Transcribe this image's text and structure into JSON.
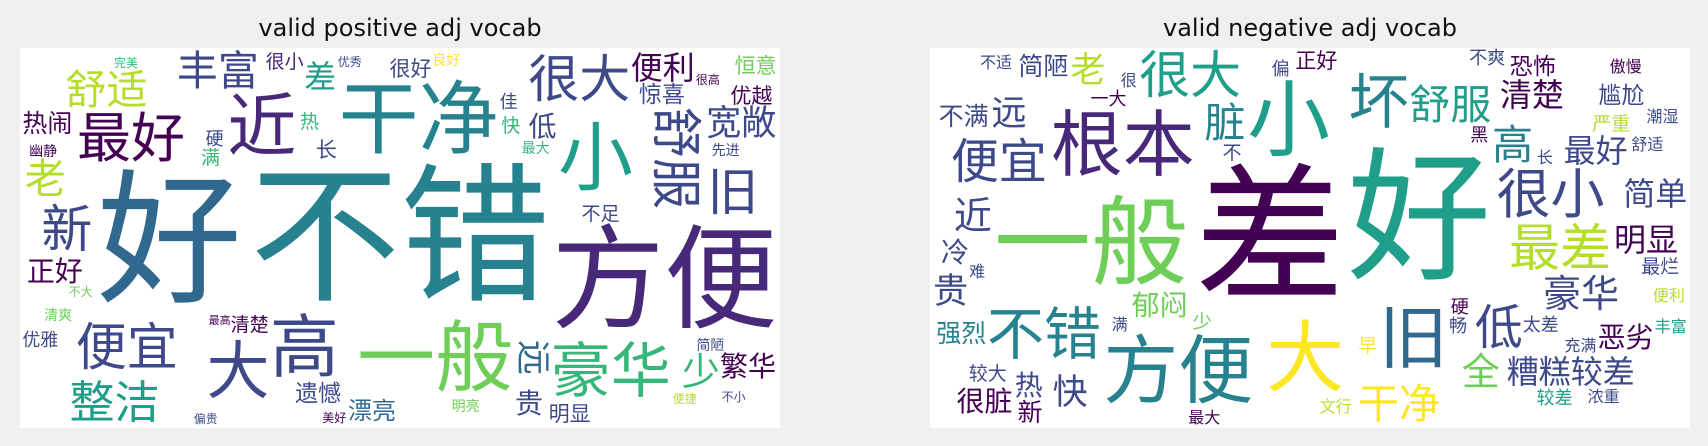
{
  "palette": {
    "background": "#f0f0f0",
    "cloud_background": "#ffffff",
    "viridis": [
      "#440154",
      "#482878",
      "#3e4989",
      "#31688e",
      "#26828e",
      "#1f9e89",
      "#35b779",
      "#6ece58",
      "#b5de2b",
      "#fde725"
    ]
  },
  "chart_data": [
    {
      "type": "wordcloud",
      "title": "valid positive adj vocab",
      "words": [
        {
          "text": "不错",
          "weight": 100,
          "color": "#26828e",
          "vertical": false
        },
        {
          "text": "好",
          "weight": 96,
          "color": "#31688e",
          "vertical": false
        },
        {
          "text": "方便",
          "weight": 72,
          "color": "#482878",
          "vertical": false
        },
        {
          "text": "干净",
          "weight": 48,
          "color": "#26828e",
          "vertical": false
        },
        {
          "text": "一般",
          "weight": 46,
          "color": "#6ece58",
          "vertical": false
        },
        {
          "text": "小",
          "weight": 44,
          "color": "#1f9e89",
          "vertical": false
        },
        {
          "text": "高",
          "weight": 40,
          "color": "#3e4989",
          "vertical": false
        },
        {
          "text": "近",
          "weight": 40,
          "color": "#482878",
          "vertical": false
        },
        {
          "text": "豪华",
          "weight": 34,
          "color": "#35b779",
          "vertical": false
        },
        {
          "text": "大",
          "weight": 36,
          "color": "#3e4989",
          "vertical": false
        },
        {
          "text": "最好",
          "weight": 30,
          "color": "#440154",
          "vertical": false
        },
        {
          "text": "很大",
          "weight": 28,
          "color": "#3e4989",
          "vertical": false
        },
        {
          "text": "舒服",
          "weight": 28,
          "color": "#3e4989",
          "vertical": true
        },
        {
          "text": "便宜",
          "weight": 28,
          "color": "#3e4989",
          "vertical": false
        },
        {
          "text": "新",
          "weight": 28,
          "color": "#3e4989",
          "vertical": false
        },
        {
          "text": "整洁",
          "weight": 24,
          "color": "#1f9e89",
          "vertical": false
        },
        {
          "text": "丰富",
          "weight": 22,
          "color": "#3e4989",
          "vertical": false
        },
        {
          "text": "舒适",
          "weight": 22,
          "color": "#b5de2b",
          "vertical": false
        },
        {
          "text": "旧",
          "weight": 28,
          "color": "#3e4989",
          "vertical": false
        },
        {
          "text": "老",
          "weight": 22,
          "color": "#b5de2b",
          "vertical": false
        },
        {
          "text": "少",
          "weight": 20,
          "color": "#35b779",
          "vertical": false
        },
        {
          "text": "宽敞",
          "weight": 18,
          "color": "#3e4989",
          "vertical": false
        },
        {
          "text": "便利",
          "weight": 16,
          "color": "#440154",
          "vertical": false
        },
        {
          "text": "漂亮",
          "weight": 16,
          "color": "#31688e",
          "vertical": false
        },
        {
          "text": "正好",
          "weight": 14,
          "color": "#440154",
          "vertical": false
        },
        {
          "text": "繁华",
          "weight": 14,
          "color": "#440154",
          "vertical": false
        },
        {
          "text": "远",
          "weight": 18,
          "color": "#31688e",
          "vertical": true
        },
        {
          "text": "差",
          "weight": 16,
          "color": "#1f9e89",
          "vertical": false
        },
        {
          "text": "热闹",
          "weight": 12,
          "color": "#440154",
          "vertical": false
        },
        {
          "text": "不足",
          "weight": 12,
          "color": "#3e4989",
          "vertical": false
        },
        {
          "text": "遗憾",
          "weight": 11,
          "color": "#3e4989",
          "vertical": false
        },
        {
          "text": "惊喜",
          "weight": 11,
          "color": "#3e4989",
          "vertical": false
        },
        {
          "text": "很好",
          "weight": 10,
          "color": "#3e4989",
          "vertical": false
        },
        {
          "text": "明显",
          "weight": 10,
          "color": "#3e4989",
          "vertical": false
        },
        {
          "text": "清楚",
          "weight": 9,
          "color": "#440154",
          "vertical": false
        },
        {
          "text": "低",
          "weight": 14,
          "color": "#3e4989",
          "vertical": false
        },
        {
          "text": "贵",
          "weight": 14,
          "color": "#3e4989",
          "vertical": false
        },
        {
          "text": "优越",
          "weight": 10,
          "color": "#440154",
          "vertical": false
        },
        {
          "text": "很小",
          "weight": 9,
          "color": "#482878",
          "vertical": false
        },
        {
          "text": "长",
          "weight": 10,
          "color": "#3e4989",
          "vertical": false
        },
        {
          "text": "最大",
          "weight": 9,
          "color": "#35b779",
          "vertical": false
        },
        {
          "text": "热",
          "weight": 9,
          "color": "#35b779",
          "vertical": false
        },
        {
          "text": "快",
          "weight": 9,
          "color": "#35b779",
          "vertical": false
        },
        {
          "text": "满",
          "weight": 9,
          "color": "#35b779",
          "vertical": false
        },
        {
          "text": "恒意",
          "weight": 10,
          "color": "#6ece58",
          "vertical": false
        },
        {
          "text": "明亮",
          "weight": 9,
          "color": "#6ece58",
          "vertical": false
        },
        {
          "text": "优雅",
          "weight": 8,
          "color": "#3e4989",
          "vertical": false
        },
        {
          "text": "硬",
          "weight": 8,
          "color": "#3e4989",
          "vertical": false
        },
        {
          "text": "良好",
          "weight": 8,
          "color": "#fde725",
          "vertical": false
        },
        {
          "text": "先进",
          "weight": 8,
          "color": "#3e4989",
          "vertical": false
        },
        {
          "text": "佳",
          "weight": 8,
          "color": "#3e4989",
          "vertical": false
        },
        {
          "text": "简陋",
          "weight": 8,
          "color": "#3e4989",
          "vertical": false
        },
        {
          "text": "清爽",
          "weight": 8,
          "color": "#6ece58",
          "vertical": false
        },
        {
          "text": "幽静",
          "weight": 8,
          "color": "#440154",
          "vertical": false
        },
        {
          "text": "最高",
          "weight": 8,
          "color": "#440154",
          "vertical": false
        },
        {
          "text": "优秀",
          "weight": 7,
          "color": "#3e4989",
          "vertical": false
        },
        {
          "text": "美好",
          "weight": 7,
          "color": "#440154",
          "vertical": false
        },
        {
          "text": "不大",
          "weight": 7,
          "color": "#6ece58",
          "vertical": false
        },
        {
          "text": "偏贵",
          "weight": 7,
          "color": "#3e4989",
          "vertical": false
        },
        {
          "text": "便捷",
          "weight": 7,
          "color": "#b5de2b",
          "vertical": false
        },
        {
          "text": "完美",
          "weight": 7,
          "color": "#35b779",
          "vertical": false
        },
        {
          "text": "很高",
          "weight": 7,
          "color": "#440154",
          "vertical": false
        },
        {
          "text": "不小",
          "weight": 7,
          "color": "#3e4989",
          "vertical": false
        }
      ]
    },
    {
      "type": "wordcloud",
      "title": "valid negative adj vocab",
      "words": [
        {
          "text": "差",
          "weight": 100,
          "color": "#440154",
          "vertical": false
        },
        {
          "text": "好",
          "weight": 95,
          "color": "#1f9e89",
          "vertical": false
        },
        {
          "text": "一般",
          "weight": 60,
          "color": "#6ece58",
          "vertical": false
        },
        {
          "text": "小",
          "weight": 50,
          "color": "#1f9e89",
          "vertical": false
        },
        {
          "text": "大",
          "weight": 46,
          "color": "#fde725",
          "vertical": false
        },
        {
          "text": "方便",
          "weight": 44,
          "color": "#26828e",
          "vertical": false
        },
        {
          "text": "根本",
          "weight": 42,
          "color": "#482878",
          "vertical": false
        },
        {
          "text": "旧",
          "weight": 40,
          "color": "#31688e",
          "vertical": false
        },
        {
          "text": "不错",
          "weight": 32,
          "color": "#26828e",
          "vertical": false
        },
        {
          "text": "很小",
          "weight": 30,
          "color": "#3e4989",
          "vertical": false
        },
        {
          "text": "坏",
          "weight": 34,
          "color": "#26828e",
          "vertical": false
        },
        {
          "text": "很大",
          "weight": 28,
          "color": "#1f9e89",
          "vertical": false
        },
        {
          "text": "最差",
          "weight": 28,
          "color": "#b5de2b",
          "vertical": false
        },
        {
          "text": "低",
          "weight": 26,
          "color": "#3e4989",
          "vertical": false
        },
        {
          "text": "便宜",
          "weight": 26,
          "color": "#3e4989",
          "vertical": false
        },
        {
          "text": "舒服",
          "weight": 22,
          "color": "#1f9e89",
          "vertical": false
        },
        {
          "text": "干净",
          "weight": 22,
          "color": "#fde725",
          "vertical": false
        },
        {
          "text": "豪华",
          "weight": 20,
          "color": "#3e4989",
          "vertical": false
        },
        {
          "text": "近",
          "weight": 20,
          "color": "#3e4989",
          "vertical": false
        },
        {
          "text": "脏",
          "weight": 22,
          "color": "#26828e",
          "vertical": false
        },
        {
          "text": "高",
          "weight": 22,
          "color": "#26828e",
          "vertical": false
        },
        {
          "text": "全",
          "weight": 20,
          "color": "#6ece58",
          "vertical": false
        },
        {
          "text": "快",
          "weight": 18,
          "color": "#3e4989",
          "vertical": false
        },
        {
          "text": "贵",
          "weight": 18,
          "color": "#3e4989",
          "vertical": false
        },
        {
          "text": "清楚",
          "weight": 16,
          "color": "#440154",
          "vertical": false
        },
        {
          "text": "最好",
          "weight": 16,
          "color": "#3e4989",
          "vertical": false
        },
        {
          "text": "糟糕较差",
          "weight": 16,
          "color": "#3e4989",
          "vertical": false
        },
        {
          "text": "明显",
          "weight": 16,
          "color": "#440154",
          "vertical": false
        },
        {
          "text": "远",
          "weight": 18,
          "color": "#3e4989",
          "vertical": false
        },
        {
          "text": "老",
          "weight": 18,
          "color": "#b5de2b",
          "vertical": false
        },
        {
          "text": "简单",
          "weight": 16,
          "color": "#3e4989",
          "vertical": false
        },
        {
          "text": "郁闷",
          "weight": 14,
          "color": "#6ece58",
          "vertical": false
        },
        {
          "text": "恶劣",
          "weight": 14,
          "color": "#440154",
          "vertical": false
        },
        {
          "text": "冷",
          "weight": 14,
          "color": "#3e4989",
          "vertical": false
        },
        {
          "text": "很脏",
          "weight": 14,
          "color": "#440154",
          "vertical": false
        },
        {
          "text": "热",
          "weight": 14,
          "color": "#3e4989",
          "vertical": false
        },
        {
          "text": "强烈",
          "weight": 12,
          "color": "#26828e",
          "vertical": false
        },
        {
          "text": "不满",
          "weight": 12,
          "color": "#3e4989",
          "vertical": false
        },
        {
          "text": "简陋",
          "weight": 12,
          "color": "#3e4989",
          "vertical": false
        },
        {
          "text": "新",
          "weight": 12,
          "color": "#440154",
          "vertical": false
        },
        {
          "text": "恐怖",
          "weight": 11,
          "color": "#440154",
          "vertical": false
        },
        {
          "text": "尴尬",
          "weight": 11,
          "color": "#3e4989",
          "vertical": false
        },
        {
          "text": "正好",
          "weight": 10,
          "color": "#440154",
          "vertical": false
        },
        {
          "text": "较大",
          "weight": 9,
          "color": "#3e4989",
          "vertical": false
        },
        {
          "text": "严重",
          "weight": 9,
          "color": "#b5de2b",
          "vertical": false
        },
        {
          "text": "最烂",
          "weight": 9,
          "color": "#3e4989",
          "vertical": false
        },
        {
          "text": "一大",
          "weight": 8,
          "color": "#440154",
          "vertical": false
        },
        {
          "text": "太差",
          "weight": 8,
          "color": "#3e4989",
          "vertical": false
        },
        {
          "text": "不爽",
          "weight": 8,
          "color": "#3e4989",
          "vertical": false
        },
        {
          "text": "较差",
          "weight": 8,
          "color": "#1f9e89",
          "vertical": false
        },
        {
          "text": "不",
          "weight": 9,
          "color": "#3e4989",
          "vertical": false
        },
        {
          "text": "少",
          "weight": 9,
          "color": "#6ece58",
          "vertical": false
        },
        {
          "text": "早",
          "weight": 9,
          "color": "#fde725",
          "vertical": false
        },
        {
          "text": "硬",
          "weight": 8,
          "color": "#440154",
          "vertical": false
        },
        {
          "text": "畅",
          "weight": 8,
          "color": "#3e4989",
          "vertical": false
        },
        {
          "text": "黑",
          "weight": 8,
          "color": "#440154",
          "vertical": false
        },
        {
          "text": "偏",
          "weight": 8,
          "color": "#3e4989",
          "vertical": false
        },
        {
          "text": "文行",
          "weight": 7,
          "color": "#b5de2b",
          "vertical": false
        },
        {
          "text": "最大",
          "weight": 7,
          "color": "#440154",
          "vertical": false
        },
        {
          "text": "充满",
          "weight": 7,
          "color": "#3e4989",
          "vertical": false
        },
        {
          "text": "不适",
          "weight": 7,
          "color": "#3e4989",
          "vertical": false
        },
        {
          "text": "舒适",
          "weight": 7,
          "color": "#3e4989",
          "vertical": false
        },
        {
          "text": "便利",
          "weight": 7,
          "color": "#b5de2b",
          "vertical": false
        },
        {
          "text": "丰富",
          "weight": 7,
          "color": "#1f9e89",
          "vertical": false
        },
        {
          "text": "浓重",
          "weight": 7,
          "color": "#3e4989",
          "vertical": false
        },
        {
          "text": "潮湿",
          "weight": 7,
          "color": "#3e4989",
          "vertical": false
        },
        {
          "text": "傲慢",
          "weight": 7,
          "color": "#440154",
          "vertical": false
        },
        {
          "text": "满",
          "weight": 7,
          "color": "#3e4989",
          "vertical": false
        },
        {
          "text": "难",
          "weight": 7,
          "color": "#3e4989",
          "vertical": false
        },
        {
          "text": "很",
          "weight": 7,
          "color": "#3e4989",
          "vertical": false
        },
        {
          "text": "长",
          "weight": 7,
          "color": "#3e4989",
          "vertical": false
        }
      ]
    }
  ]
}
